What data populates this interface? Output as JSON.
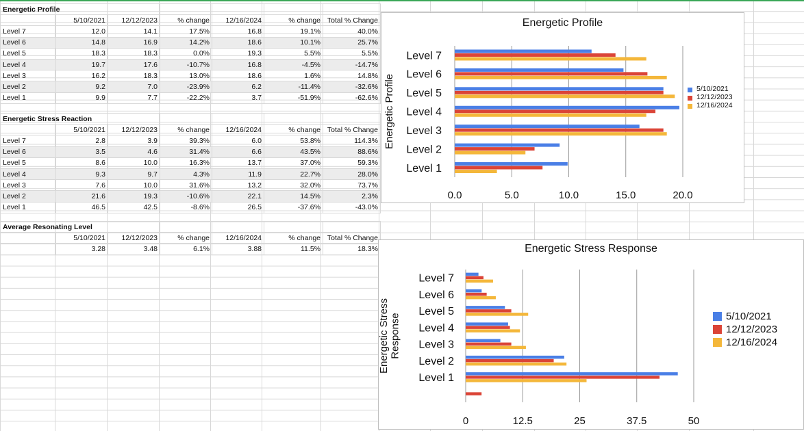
{
  "tables": [
    {
      "title": "Energetic Profile",
      "headers": [
        "",
        "5/10/2021",
        "12/12/2023",
        "% change",
        "12/16/2024",
        "% change",
        "Total % Change"
      ],
      "rows": [
        [
          "Level 7",
          "12.0",
          "14.1",
          "17.5%",
          "16.8",
          "19.1%",
          "40.0%"
        ],
        [
          "Level 6",
          "14.8",
          "16.9",
          "14.2%",
          "18.6",
          "10.1%",
          "25.7%"
        ],
        [
          "Level 5",
          "18.3",
          "18.3",
          "0.0%",
          "19.3",
          "5.5%",
          "5.5%"
        ],
        [
          "Level 4",
          "19.7",
          "17.6",
          "-10.7%",
          "16.8",
          "-4.5%",
          "-14.7%"
        ],
        [
          "Level 3",
          "16.2",
          "18.3",
          "13.0%",
          "18.6",
          "1.6%",
          "14.8%"
        ],
        [
          "Level 2",
          "9.2",
          "7.0",
          "-23.9%",
          "6.2",
          "-11.4%",
          "-32.6%"
        ],
        [
          "Level 1",
          "9.9",
          "7.7",
          "-22.2%",
          "3.7",
          "-51.9%",
          "-62.6%"
        ]
      ]
    },
    {
      "title": "Energetic Stress Reaction",
      "headers": [
        "",
        "5/10/2021",
        "12/12/2023",
        "% change",
        "12/16/2024",
        "% change",
        "Total % Change"
      ],
      "rows": [
        [
          "Level 7",
          "2.8",
          "3.9",
          "39.3%",
          "6.0",
          "53.8%",
          "114.3%"
        ],
        [
          "Level 6",
          "3.5",
          "4.6",
          "31.4%",
          "6.6",
          "43.5%",
          "88.6%"
        ],
        [
          "Level 5",
          "8.6",
          "10.0",
          "16.3%",
          "13.7",
          "37.0%",
          "59.3%"
        ],
        [
          "Level 4",
          "9.3",
          "9.7",
          "4.3%",
          "11.9",
          "22.7%",
          "28.0%"
        ],
        [
          "Level 3",
          "7.6",
          "10.0",
          "31.6%",
          "13.2",
          "32.0%",
          "73.7%"
        ],
        [
          "Level 2",
          "21.6",
          "19.3",
          "-10.6%",
          "22.1",
          "14.5%",
          "2.3%"
        ],
        [
          "Level 1",
          "46.5",
          "42.5",
          "-8.6%",
          "26.5",
          "-37.6%",
          "-43.0%"
        ]
      ]
    },
    {
      "title": "Average Resonating Level",
      "headers": [
        "",
        "5/10/2021",
        "12/12/2023",
        "% change",
        "12/16/2024",
        "% change",
        "Total % Change"
      ],
      "rows": [
        [
          "",
          "3.28",
          "3.48",
          "6.1%",
          "3.88",
          "11.5%",
          "18.3%"
        ]
      ]
    }
  ],
  "colors": {
    "series1": "#4a7fe6",
    "series2": "#db4437",
    "series3": "#f4b73a"
  },
  "chart_data": [
    {
      "type": "bar",
      "orientation": "horizontal",
      "title": "Energetic Profile",
      "xlabel": "",
      "ylabel": "Energetic Profile",
      "categories": [
        "Level 7",
        "Level 6",
        "Level 5",
        "Level 4",
        "Level 3",
        "Level 2",
        "Level 1"
      ],
      "series": [
        {
          "name": "5/10/2021",
          "values": [
            12.0,
            14.8,
            18.3,
            19.7,
            16.2,
            9.2,
            9.9
          ]
        },
        {
          "name": "12/12/2023",
          "values": [
            14.1,
            16.9,
            18.3,
            17.6,
            18.3,
            7.0,
            7.7
          ]
        },
        {
          "name": "12/16/2024",
          "values": [
            16.8,
            18.6,
            19.3,
            16.8,
            18.6,
            6.2,
            3.7
          ]
        }
      ],
      "xlim": [
        0,
        20
      ],
      "xticks": [
        "0.0",
        "5.0",
        "10.0",
        "15.0",
        "20.0"
      ],
      "grid": true,
      "legend": "right"
    },
    {
      "type": "bar",
      "orientation": "horizontal",
      "title": "Energetic Stress Response",
      "xlabel": "",
      "ylabel": "Energetic Stress Response",
      "categories": [
        "Level 7",
        "Level 6",
        "Level 5",
        "Level 4",
        "Level 3",
        "Level 2",
        "Level 1",
        ""
      ],
      "series": [
        {
          "name": "5/10/2021",
          "values": [
            2.8,
            3.5,
            8.6,
            9.3,
            7.6,
            21.6,
            46.5,
            0
          ]
        },
        {
          "name": "12/12/2023",
          "values": [
            3.9,
            4.6,
            10.0,
            9.7,
            10.0,
            19.3,
            42.5,
            3.48
          ]
        },
        {
          "name": "12/16/2024",
          "values": [
            6.0,
            6.6,
            13.7,
            11.9,
            13.2,
            22.1,
            26.5,
            0
          ]
        }
      ],
      "xlim": [
        0,
        50
      ],
      "xticks": [
        "0",
        "12.5",
        "25",
        "37.5",
        "50"
      ],
      "grid": true,
      "legend": "right"
    }
  ]
}
